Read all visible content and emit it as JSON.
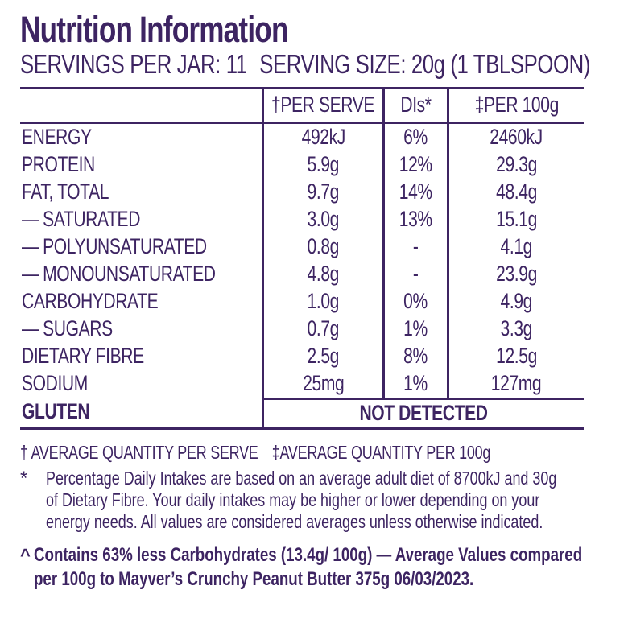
{
  "colors": {
    "ink": "#3d2462",
    "background": "#ffffff"
  },
  "header": {
    "title": "Nutrition Information",
    "servings_per_jar": "SERVINGS PER JAR: 11",
    "serving_size": "SERVING SIZE: 20g (1 TBLSPOON)"
  },
  "table": {
    "col_per_serve": "†PER SERVE",
    "col_di": "DIs*",
    "col_per_100g": "‡PER 100g",
    "rows": [
      {
        "label": "ENERGY",
        "per_serve": "492kJ",
        "di": "6%",
        "per_100g": "2460kJ"
      },
      {
        "label": "PROTEIN",
        "per_serve": "5.9g",
        "di": "12%",
        "per_100g": "29.3g"
      },
      {
        "label": "FAT, TOTAL",
        "per_serve": "9.7g",
        "di": "14%",
        "per_100g": "48.4g"
      },
      {
        "label": "— SATURATED",
        "per_serve": "3.0g",
        "di": "13%",
        "per_100g": "15.1g"
      },
      {
        "label": "— POLYUNSATURATED",
        "per_serve": "0.8g",
        "di": "-",
        "per_100g": "4.1g"
      },
      {
        "label": "— MONOUNSATURATED",
        "per_serve": "4.8g",
        "di": "-",
        "per_100g": "23.9g"
      },
      {
        "label": "CARBOHYDRATE",
        "per_serve": "1.0g",
        "di": "0%",
        "per_100g": "4.9g"
      },
      {
        "label": "— SUGARS",
        "per_serve": "0.7g",
        "di": "1%",
        "per_100g": "3.3g"
      },
      {
        "label": "DIETARY FIBRE",
        "per_serve": "2.5g",
        "di": "8%",
        "per_100g": "12.5g"
      },
      {
        "label": "SODIUM",
        "per_serve": "25mg",
        "di": "1%",
        "per_100g": "127mg"
      }
    ],
    "gluten_row": {
      "label": "GLUTEN",
      "value": "NOT DETECTED"
    }
  },
  "footnotes": {
    "dagger_note": "† AVERAGE QUANTITY PER SERVE",
    "double_dagger_note": "‡AVERAGE QUANTITY PER 100g",
    "asterisk_marker": "*",
    "asterisk_lines": [
      "Percentage Daily Intakes are based on an average adult diet of 8700kJ and 30g",
      "of Dietary Fibre. Your daily intakes may be higher or lower depending on your",
      "energy needs. All values are considered averages unless otherwise indicated."
    ],
    "caret_marker": "^",
    "caret_lines": [
      "Contains 63% less Carbohydrates (13.4g/ 100g) — Average Values compared",
      "per 100g to Mayver’s Crunchy Peanut Butter 375g 06/03/2023."
    ]
  }
}
